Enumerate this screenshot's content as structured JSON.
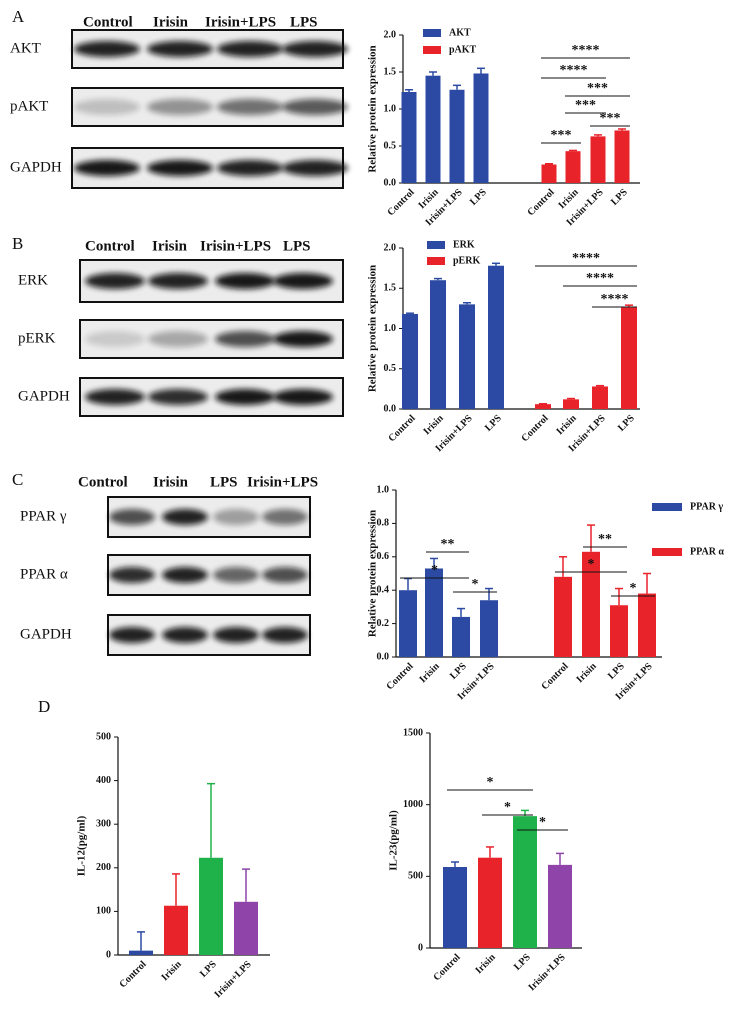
{
  "blots": [
    {
      "panel": "A",
      "lanes": [
        "Control",
        "Irisin",
        "Irisin+LPS",
        "LPS"
      ],
      "rows": [
        "AKT",
        "pAKT",
        "GAPDH"
      ]
    },
    {
      "panel": "B",
      "lanes": [
        "Control",
        "Irisin",
        "Irisin+LPS",
        "LPS"
      ],
      "rows": [
        "ERK",
        "pERK",
        "GAPDH"
      ]
    },
    {
      "panel": "C",
      "lanes": [
        "Control",
        "Irisin",
        "LPS",
        "Irisin+LPS"
      ],
      "rows": [
        "PPAR γ",
        "PPAR α",
        "GAPDH"
      ]
    }
  ],
  "panel_d": "D",
  "chart_data": [
    {
      "type": "bar",
      "ylabel": "Relative protein  expression",
      "ylim": [
        0,
        2
      ],
      "yticks": [
        {
          "value": 0,
          "label": "0.0"
        },
        {
          "value": 0.5,
          "label": "0.5"
        },
        {
          "value": 1,
          "label": "1.0"
        },
        {
          "value": 1.5,
          "label": "1.5"
        },
        {
          "value": 2,
          "label": "2.0"
        }
      ],
      "categories": [
        "Control",
        "Irisin",
        "Irisin+LPS",
        "LPS",
        "Control",
        "Irisin",
        "Irisin+LPS",
        "LPS"
      ],
      "series": [
        {
          "name": "AKT",
          "color": "#2c4aa3",
          "values": [
            1.23,
            1.45,
            1.26,
            1.48,
            null,
            null,
            null,
            null
          ],
          "errors": [
            0.03,
            0.05,
            0.06,
            0.07,
            null,
            null,
            null,
            null
          ]
        },
        {
          "name": "pAKT",
          "color": "#e8232a",
          "values": [
            null,
            null,
            null,
            null,
            0.25,
            0.43,
            0.63,
            0.71
          ],
          "errors": [
            null,
            null,
            null,
            null,
            0.01,
            0.01,
            0.02,
            0.02
          ]
        }
      ],
      "annotations": [
        "****",
        "****",
        "***",
        "***",
        "***",
        "***"
      ]
    },
    {
      "type": "bar",
      "ylabel": "Relative protein  expression",
      "ylim": [
        0,
        2
      ],
      "yticks": [
        {
          "value": 0,
          "label": "0.0"
        },
        {
          "value": 0.5,
          "label": "0.5"
        },
        {
          "value": 1,
          "label": "1.0"
        },
        {
          "value": 1.5,
          "label": "1.5"
        },
        {
          "value": 2,
          "label": "2.0"
        }
      ],
      "categories": [
        "Control",
        "Irisin",
        "Irisin+LPS",
        "LPS",
        "Control",
        "Irisin",
        "Irisin+LPS",
        "LPS"
      ],
      "series": [
        {
          "name": "ERK",
          "color": "#2c4aa3",
          "values": [
            1.18,
            1.6,
            1.3,
            1.78,
            null,
            null,
            null,
            null
          ],
          "errors": [
            0.01,
            0.02,
            0.02,
            0.03,
            null,
            null,
            null,
            null
          ]
        },
        {
          "name": "pERK",
          "color": "#e8232a",
          "values": [
            null,
            null,
            null,
            null,
            0.06,
            0.12,
            0.28,
            1.26
          ],
          "errors": [
            null,
            null,
            null,
            null,
            0.005,
            0.01,
            0.01,
            0.03
          ]
        }
      ],
      "annotations": [
        "****",
        "****",
        "****"
      ]
    },
    {
      "type": "bar",
      "ylabel": "Relative protein  expression",
      "ylim": [
        0,
        1
      ],
      "yticks": [
        {
          "value": 0,
          "label": "0.0"
        },
        {
          "value": 0.2,
          "label": "0.2"
        },
        {
          "value": 0.4,
          "label": "0.4"
        },
        {
          "value": 0.6,
          "label": "0.6"
        },
        {
          "value": 0.8,
          "label": "0.8"
        },
        {
          "value": 1,
          "label": "1.0"
        }
      ],
      "categories": [
        "Control",
        "Irisin",
        "LPS",
        "Irisin+LPS",
        "Control",
        "Irisin",
        "LPS",
        "Irisin+LPS"
      ],
      "series": [
        {
          "name": "PPAR γ",
          "color": "#2c4aa3",
          "values": [
            0.4,
            0.53,
            0.24,
            0.34,
            null,
            null,
            null,
            null
          ],
          "errors": [
            0.07,
            0.06,
            0.05,
            0.07,
            null,
            null,
            null,
            null
          ]
        },
        {
          "name": "PPAR α",
          "color": "#e8232a",
          "values": [
            null,
            null,
            null,
            null,
            0.48,
            0.63,
            0.31,
            0.38
          ],
          "errors": [
            null,
            null,
            null,
            null,
            0.12,
            0.16,
            0.1,
            0.12
          ]
        }
      ],
      "annotations": [
        "*",
        "**",
        "*",
        "*",
        "**",
        "*"
      ]
    },
    {
      "type": "bar",
      "ylabel": "IL-12(pg/ml)",
      "ylim": [
        0,
        500
      ],
      "yticks": [
        0,
        100,
        200,
        300,
        400,
        500
      ],
      "categories": [
        "Control",
        "Irisin",
        "LPS",
        "Irisin+LPS"
      ],
      "values": [
        10,
        113,
        223,
        122
      ],
      "errors": [
        43,
        73,
        170,
        75
      ],
      "colors": [
        "#2c4aa3",
        "#e8232a",
        "#1fb24a",
        "#8e44a8"
      ]
    },
    {
      "type": "bar",
      "ylabel": "IL-23(pg/ml)",
      "ylim": [
        0,
        1500
      ],
      "yticks": [
        0,
        500,
        1000,
        1500
      ],
      "categories": [
        "Control",
        "Irisin",
        "LPS",
        "Irisin+LPS"
      ],
      "values": [
        565,
        630,
        920,
        580
      ],
      "errors": [
        35,
        75,
        40,
        80
      ],
      "colors": [
        "#2c4aa3",
        "#e8232a",
        "#1fb24a",
        "#8e44a8"
      ],
      "annotations": [
        "*",
        "*",
        "*"
      ]
    }
  ]
}
